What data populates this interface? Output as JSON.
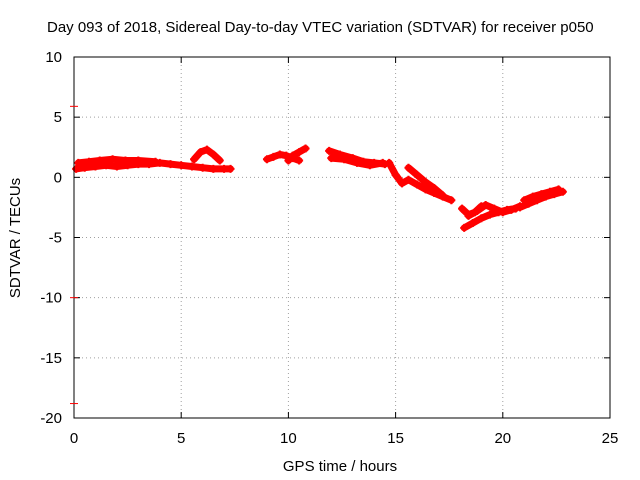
{
  "chart_data": {
    "type": "scatter",
    "title": "Day 093 of 2018, Sidereal Day-to-day VTEC variation (SDTVAR) for receiver p050",
    "xlabel": "GPS time / hours",
    "ylabel": "SDTVAR / TECUs",
    "xlim": [
      0,
      25
    ],
    "ylim": [
      -20,
      10
    ],
    "grid": true,
    "xticks": [
      0,
      5,
      10,
      15,
      20,
      25
    ],
    "yticks": [
      -20,
      -15,
      -10,
      -5,
      0,
      5,
      10
    ],
    "xtick_labels": [
      "0",
      "5",
      "10",
      "15",
      "20",
      "25"
    ],
    "ytick_labels": [
      "-20",
      "-15",
      "-10",
      "-5",
      "0",
      "5",
      "10"
    ],
    "marker_color": "#ff0000",
    "series": [
      {
        "name": "SDTVAR",
        "segments": [
          {
            "x": [
              0.1,
              0.5,
              1.0,
              1.5,
              2.0,
              2.5,
              3.0,
              3.5,
              4.0,
              4.5,
              5.0,
              5.5,
              6.0,
              6.5,
              7.0,
              7.3
            ],
            "y": [
              0.7,
              0.8,
              0.9,
              1.0,
              0.9,
              1.0,
              1.1,
              1.1,
              1.2,
              1.1,
              1.0,
              0.9,
              0.8,
              0.7,
              0.7,
              0.7
            ]
          },
          {
            "x": [
              0.2,
              0.7,
              1.2,
              1.8,
              2.4,
              3.0,
              3.8
            ],
            "y": [
              1.2,
              1.3,
              1.4,
              1.5,
              1.4,
              1.4,
              1.3
            ]
          },
          {
            "x": [
              5.6,
              5.9,
              6.2,
              6.5,
              6.8
            ],
            "y": [
              1.5,
              2.1,
              2.3,
              1.9,
              1.4
            ]
          },
          {
            "x": [
              9.0,
              9.3,
              9.6,
              9.9,
              10.2,
              10.5
            ],
            "y": [
              1.5,
              1.7,
              1.9,
              1.8,
              1.6,
              1.4
            ]
          },
          {
            "x": [
              10.0,
              10.2,
              10.5,
              10.8
            ],
            "y": [
              1.4,
              1.8,
              2.1,
              2.4
            ]
          },
          {
            "x": [
              11.9,
              12.4,
              13.0,
              13.5,
              14.0,
              14.5
            ],
            "y": [
              2.2,
              1.9,
              1.6,
              1.3,
              1.2,
              1.1
            ]
          },
          {
            "x": [
              12.0,
              12.6,
              13.2,
              13.8,
              14.4
            ],
            "y": [
              1.6,
              1.5,
              1.2,
              1.0,
              1.2
            ]
          },
          {
            "x": [
              14.7,
              15.0,
              15.3,
              15.6,
              16.0,
              16.4,
              16.8,
              17.2,
              17.6
            ],
            "y": [
              1.2,
              0.2,
              -0.5,
              -0.2,
              -0.6,
              -1.0,
              -1.3,
              -1.6,
              -1.9
            ]
          },
          {
            "x": [
              15.6,
              16.0,
              16.4,
              16.8,
              17.2
            ],
            "y": [
              0.8,
              0.2,
              -0.4,
              -0.9,
              -1.5
            ]
          },
          {
            "x": [
              18.2,
              18.6,
              19.0,
              19.4,
              19.8,
              20.2,
              20.6
            ],
            "y": [
              -4.2,
              -3.8,
              -3.4,
              -3.1,
              -2.9,
              -2.7,
              -2.6
            ]
          },
          {
            "x": [
              18.4,
              18.8,
              19.2,
              19.6,
              20.0,
              20.4,
              20.8
            ],
            "y": [
              -3.2,
              -2.8,
              -2.3,
              -2.6,
              -2.9,
              -2.7,
              -2.4
            ]
          },
          {
            "x": [
              18.1,
              18.4,
              18.7,
              19.0
            ],
            "y": [
              -2.6,
              -3.1,
              -2.9,
              -2.4
            ]
          },
          {
            "x": [
              20.8,
              21.2,
              21.6,
              22.0,
              22.4,
              22.8
            ],
            "y": [
              -2.5,
              -2.2,
              -1.9,
              -1.6,
              -1.4,
              -1.2
            ]
          },
          {
            "x": [
              21.0,
              21.4,
              21.8,
              22.2,
              22.6
            ],
            "y": [
              -1.9,
              -1.6,
              -1.4,
              -1.2,
              -1.0
            ]
          }
        ]
      }
    ],
    "axis_marks": {
      "left_axis_y": [
        5.9,
        -10.0,
        -18.8
      ]
    }
  }
}
